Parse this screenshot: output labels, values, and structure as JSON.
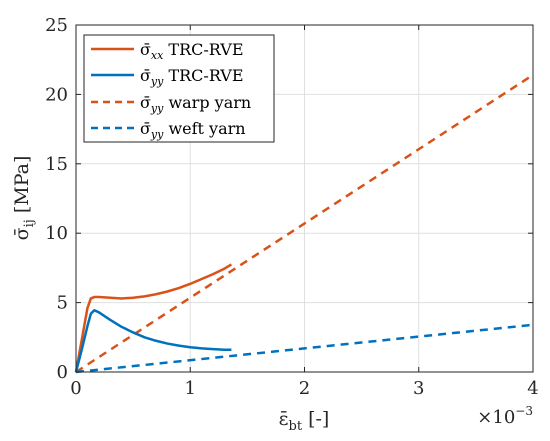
{
  "chart_data": {
    "type": "line",
    "xlabel": "ε̄bt [-]",
    "ylabel": "σ̄ij [MPa]",
    "x_multiplier": "×10⁻³",
    "xlim": [
      0,
      4
    ],
    "ylim": [
      0,
      25
    ],
    "xticks": [
      "0",
      "1",
      "2",
      "3",
      "4"
    ],
    "yticks": [
      "0",
      "5",
      "10",
      "15",
      "20",
      "25"
    ],
    "grid": true,
    "legend_placement": "top-left",
    "series": [
      {
        "name": "σ̄xx TRC-RVE",
        "color": "#d95319",
        "dash": "solid",
        "x": [
          0,
          0.05,
          0.1,
          0.13,
          0.16,
          0.2,
          0.3,
          0.4,
          0.5,
          0.6,
          0.7,
          0.8,
          0.9,
          1.0,
          1.1,
          1.2,
          1.3,
          1.36
        ],
        "y": [
          0,
          2.3,
          4.6,
          5.3,
          5.4,
          5.4,
          5.35,
          5.3,
          5.35,
          5.45,
          5.6,
          5.8,
          6.05,
          6.35,
          6.7,
          7.05,
          7.45,
          7.75
        ]
      },
      {
        "name": "σ̄yy TRC-RVE",
        "color": "#0072bd",
        "dash": "solid",
        "x": [
          0,
          0.05,
          0.1,
          0.13,
          0.16,
          0.2,
          0.3,
          0.4,
          0.5,
          0.6,
          0.7,
          0.8,
          0.9,
          1.0,
          1.1,
          1.2,
          1.3,
          1.36
        ],
        "y": [
          0,
          1.6,
          3.3,
          4.2,
          4.45,
          4.3,
          3.75,
          3.25,
          2.85,
          2.5,
          2.25,
          2.05,
          1.9,
          1.78,
          1.7,
          1.65,
          1.6,
          1.6
        ]
      },
      {
        "name": "σ̄yy warp yarn",
        "color": "#d95319",
        "dash": "dashed",
        "x": [
          0,
          4
        ],
        "y": [
          0,
          21.4
        ]
      },
      {
        "name": "σ̄yy weft yarn",
        "color": "#0072bd",
        "dash": "dashed",
        "x": [
          0,
          4
        ],
        "y": [
          0,
          3.4
        ]
      }
    ]
  },
  "legend": [
    {
      "symbol": "σ̄",
      "sub": "xx",
      "rest": " TRC-RVE"
    },
    {
      "symbol": "σ̄",
      "sub": "yy",
      "rest": " TRC-RVE"
    },
    {
      "symbol": "σ̄",
      "sub": "yy",
      "rest": " warp yarn"
    },
    {
      "symbol": "σ̄",
      "sub": "yy",
      "rest": " weft yarn"
    }
  ],
  "axis_text": {
    "x_main": "ε̄",
    "x_sub": "bt",
    "x_unit": " [-]",
    "y_main": "σ̄",
    "y_sub": "ij",
    "y_unit": " [MPa]",
    "exp_base": "×10",
    "exp_power": "−3"
  }
}
